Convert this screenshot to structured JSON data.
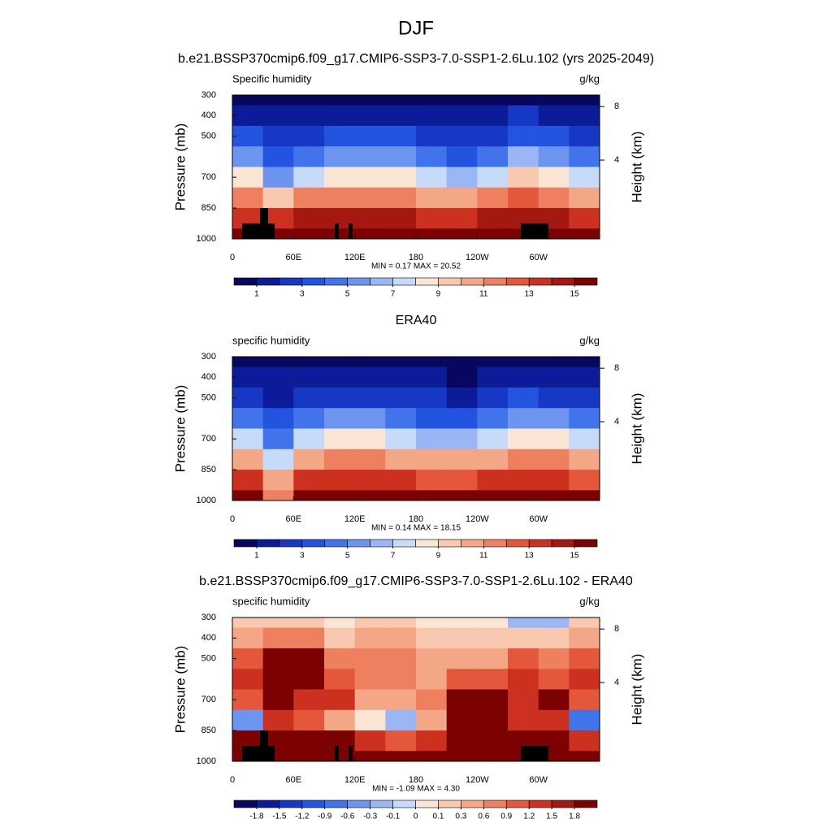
{
  "title": "DJF",
  "chart_data": [
    {
      "type": "contour",
      "title": "b.e21.BSSP370cmip6.f09_g17.CMIP6-SSP3-7.0-SSP1-2.6Lu.102 (yrs 2025-2049)",
      "left_label": "Specific humidity",
      "right_label": "g/kg",
      "ylabel": "Pressure (mb)",
      "y2label": "Height (km)",
      "stats": "MIN =  0.17  MAX =  20.52",
      "x": [
        15,
        45,
        75,
        105,
        135,
        165,
        195,
        225,
        255,
        285,
        315,
        345
      ],
      "y": [
        300,
        400,
        500,
        600,
        700,
        800,
        900,
        1000
      ],
      "values": [
        [
          0.8,
          0.7,
          0.8,
          0.9,
          0.9,
          0.8,
          0.6,
          0.5,
          0.6,
          1.0,
          0.9,
          0.6
        ],
        [
          2,
          1.5,
          1.8,
          2,
          2,
          1.8,
          1.4,
          1.2,
          1.4,
          2.2,
          2,
          1.5
        ],
        [
          3.5,
          2.5,
          3,
          3.5,
          3.5,
          3.2,
          2.5,
          2.2,
          2.6,
          4,
          3.5,
          3
        ],
        [
          6,
          4,
          5,
          6,
          6,
          5.5,
          4.5,
          4,
          5,
          6.5,
          6,
          5
        ],
        [
          9,
          6,
          8,
          9,
          9,
          8.5,
          7.5,
          7,
          8,
          9.5,
          9,
          8
        ],
        [
          12,
          10,
          12,
          12,
          12,
          12,
          11,
          11,
          12,
          13,
          12,
          11
        ],
        [
          14,
          14,
          15,
          15,
          15,
          15,
          14,
          14,
          15,
          15,
          15,
          14
        ],
        [
          16,
          16,
          17,
          17,
          17,
          17,
          16,
          16,
          17,
          17,
          17,
          16
        ]
      ],
      "xlim": [
        0,
        360
      ],
      "ylim": [
        1000,
        300
      ],
      "xticks": [
        0,
        {
          "value": 60,
          "label": "60E"
        },
        {
          "value": 120,
          "label": "120E"
        },
        180,
        {
          "value": 240,
          "label": "120W"
        },
        {
          "value": 300,
          "label": "60W"
        }
      ],
      "yticks": [
        300,
        400,
        500,
        700,
        850,
        1000
      ],
      "y2ticks": [
        4,
        8
      ],
      "levels": [
        1,
        2,
        3,
        4,
        5,
        6,
        7,
        8,
        9,
        10,
        11,
        12,
        13,
        14,
        15
      ],
      "colorbar_ticks": [
        1,
        3,
        5,
        7,
        9,
        11,
        13,
        15
      ],
      "colors": [
        "#07075e",
        "#0c1c98",
        "#1638c4",
        "#2254e0",
        "#4174ea",
        "#6c95f0",
        "#9ab6f4",
        "#c6dbf9",
        "#fbe6d6",
        "#f8c9ae",
        "#f4a786",
        "#ee8060",
        "#e4573a",
        "#cc3120",
        "#a41812",
        "#7c0202"
      ]
    },
    {
      "type": "contour",
      "title": "ERA40",
      "left_label": "specific humidity",
      "right_label": "g/kg",
      "ylabel": "Pressure (mb)",
      "y2label": "Height (km)",
      "stats": "MIN =  0.14  MAX =  18.15",
      "x": [
        15,
        45,
        75,
        105,
        135,
        165,
        195,
        225,
        255,
        285,
        315,
        345
      ],
      "y": [
        300,
        400,
        500,
        600,
        700,
        800,
        900,
        1000
      ],
      "values": [
        [
          0.6,
          0.5,
          0.6,
          0.8,
          0.8,
          0.7,
          0.5,
          0.4,
          0.5,
          0.8,
          0.7,
          0.5
        ],
        [
          1.6,
          1.2,
          1.4,
          1.7,
          1.7,
          1.5,
          1.1,
          0.9,
          1.1,
          1.8,
          1.6,
          1.2
        ],
        [
          3,
          2,
          2.5,
          3,
          3,
          2.8,
          2.1,
          1.8,
          2.2,
          3.4,
          3,
          2.5
        ],
        [
          5,
          3.5,
          4.5,
          5.3,
          5.3,
          5,
          4,
          3.5,
          4.5,
          6,
          5.3,
          4.5
        ],
        [
          8,
          5,
          7.5,
          8.3,
          8.3,
          8,
          7,
          6.5,
          7.5,
          8.8,
          8.3,
          7.5
        ],
        [
          11,
          8,
          11,
          11.5,
          11.5,
          11,
          10.5,
          10.5,
          11,
          12,
          11.5,
          10.5
        ],
        [
          13.5,
          11,
          14,
          14,
          14,
          14,
          13,
          13,
          14,
          14,
          14,
          13
        ],
        [
          15.5,
          12,
          16,
          16,
          16,
          16,
          15.5,
          15.5,
          16,
          16,
          16,
          15.5
        ]
      ],
      "xlim": [
        0,
        360
      ],
      "ylim": [
        1000,
        300
      ],
      "xticks": [
        0,
        {
          "value": 60,
          "label": "60E"
        },
        {
          "value": 120,
          "label": "120E"
        },
        180,
        {
          "value": 240,
          "label": "120W"
        },
        {
          "value": 300,
          "label": "60W"
        }
      ],
      "yticks": [
        300,
        400,
        500,
        700,
        850,
        1000
      ],
      "y2ticks": [
        4,
        8
      ],
      "levels": [
        1,
        2,
        3,
        4,
        5,
        6,
        7,
        8,
        9,
        10,
        11,
        12,
        13,
        14,
        15
      ],
      "colorbar_ticks": [
        1,
        3,
        5,
        7,
        9,
        11,
        13,
        15
      ],
      "colors": [
        "#07075e",
        "#0c1c98",
        "#1638c4",
        "#2254e0",
        "#4174ea",
        "#6c95f0",
        "#9ab6f4",
        "#c6dbf9",
        "#fbe6d6",
        "#f8c9ae",
        "#f4a786",
        "#ee8060",
        "#e4573a",
        "#cc3120",
        "#a41812",
        "#7c0202"
      ]
    },
    {
      "type": "contour",
      "title": "b.e21.BSSP370cmip6.f09_g17.CMIP6-SSP3-7.0-SSP1-2.6Lu.102 - ERA40",
      "left_label": "specific humidity",
      "right_label": "g/kg",
      "ylabel": "Pressure (mb)",
      "y2label": "Height (km)",
      "stats": "MIN = -1.09  MAX =  4.30",
      "x": [
        15,
        45,
        75,
        105,
        135,
        165,
        195,
        225,
        255,
        285,
        315,
        345
      ],
      "y": [
        300,
        400,
        500,
        600,
        700,
        800,
        900,
        1000
      ],
      "values": [
        [
          0.3,
          0.3,
          0.3,
          0.05,
          0.3,
          0.3,
          0.05,
          0.05,
          0.05,
          -0.2,
          -0.2,
          0.3
        ],
        [
          0.6,
          0.9,
          0.9,
          0.3,
          0.6,
          0.6,
          0.3,
          0.3,
          0.3,
          0.3,
          0.3,
          0.6
        ],
        [
          1.2,
          2,
          2,
          0.9,
          0.9,
          0.9,
          0.6,
          0.6,
          0.6,
          1.2,
          0.9,
          1.2
        ],
        [
          1.5,
          2,
          2,
          1.2,
          0.9,
          0.9,
          0.6,
          1.2,
          1.2,
          1.5,
          1.2,
          1.5
        ],
        [
          1.2,
          2,
          1.5,
          1.5,
          0.6,
          0.6,
          0.9,
          2,
          2,
          1.5,
          2,
          1.2
        ],
        [
          -0.5,
          1.5,
          1.2,
          0.6,
          0.1,
          -0.2,
          0.6,
          2,
          2,
          1.5,
          1.5,
          -0.6
        ],
        [
          2,
          2,
          2,
          2,
          1.5,
          1.2,
          1.5,
          2,
          2,
          2,
          2,
          1.5
        ],
        [
          2,
          2,
          2,
          2,
          2,
          2,
          2,
          2,
          2,
          2,
          2,
          2
        ]
      ],
      "xlim": [
        0,
        360
      ],
      "ylim": [
        1000,
        300
      ],
      "xticks": [
        0,
        {
          "value": 60,
          "label": "60E"
        },
        {
          "value": 120,
          "label": "120E"
        },
        180,
        {
          "value": 240,
          "label": "120W"
        },
        {
          "value": 300,
          "label": "60W"
        }
      ],
      "yticks": [
        300,
        400,
        500,
        700,
        850,
        1000
      ],
      "y2ticks": [
        4,
        8
      ],
      "levels": [
        -1.8,
        -1.5,
        -1.2,
        -0.9,
        -0.6,
        -0.3,
        -0.1,
        0,
        0.1,
        0.3,
        0.6,
        0.9,
        1.2,
        1.5,
        1.8
      ],
      "colorbar_ticks": [
        -1.8,
        -1.5,
        -1.2,
        -0.9,
        -0.6,
        -0.3,
        -0.1,
        0,
        0.1,
        0.3,
        0.6,
        0.9,
        1.2,
        1.5,
        1.8
      ],
      "colors": [
        "#07075e",
        "#0c1c98",
        "#1638c4",
        "#2254e0",
        "#4174ea",
        "#6c95f0",
        "#9ab6f4",
        "#c6dbf9",
        "#fbe6d6",
        "#f8c9ae",
        "#f4a786",
        "#ee8060",
        "#e4573a",
        "#cc3120",
        "#a41812",
        "#7c0202"
      ]
    }
  ]
}
